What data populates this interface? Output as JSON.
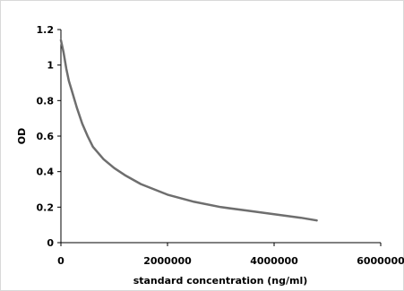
{
  "chart_data": {
    "type": "line",
    "title": "",
    "xlabel": "standard concentration (ng/ml)",
    "ylabel": "OD",
    "xlim": [
      0,
      6000000
    ],
    "ylim": [
      0,
      1.2
    ],
    "x_ticks": [
      0,
      2000000,
      4000000,
      6000000
    ],
    "x_tick_labels": [
      "0",
      "2000000",
      "4000000",
      "6000000"
    ],
    "y_ticks": [
      0,
      0.2,
      0.4,
      0.6,
      0.8,
      1,
      1.2
    ],
    "y_tick_labels": [
      "0",
      "0.2",
      "0.4",
      "0.6",
      "0.8",
      "1",
      "1.2"
    ],
    "grid": false,
    "legend": "none",
    "line_color": "#6e6e6e",
    "series": [
      {
        "x": [
          0,
          50000,
          100000,
          150000,
          200000,
          300000,
          400000,
          500000,
          600000,
          800000,
          1000000,
          1200000,
          1500000,
          2000000,
          2500000,
          3000000,
          3500000,
          4000000,
          4500000,
          4800000
        ],
        "values": [
          1.14,
          1.07,
          0.98,
          0.91,
          0.86,
          0.76,
          0.67,
          0.6,
          0.54,
          0.47,
          0.42,
          0.38,
          0.33,
          0.27,
          0.23,
          0.2,
          0.18,
          0.16,
          0.14,
          0.125
        ]
      }
    ]
  }
}
